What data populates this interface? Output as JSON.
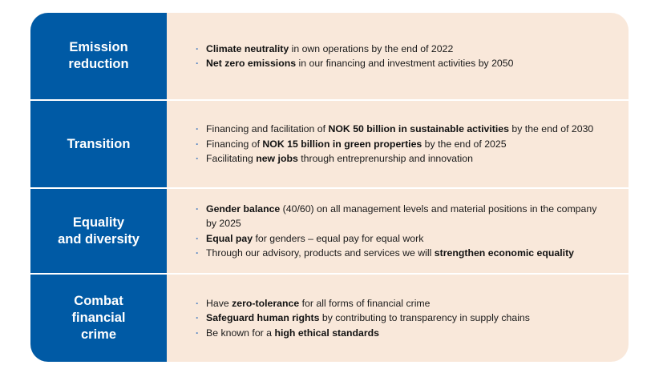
{
  "rows": [
    {
      "label": "Emission\nreduction",
      "items": [
        [
          {
            "b": true,
            "t": "Climate neutrality"
          },
          {
            "b": false,
            "t": " in own operations by the end of 2022"
          }
        ],
        [
          {
            "b": true,
            "t": "Net zero emissions"
          },
          {
            "b": false,
            "t": " in our financing and investment activities by 2050"
          }
        ]
      ]
    },
    {
      "label": "Transition",
      "items": [
        [
          {
            "b": false,
            "t": "Financing and facilitation of "
          },
          {
            "b": true,
            "t": "NOK 50 billion in sustainable activities"
          },
          {
            "b": false,
            "t": " by the end of 2030"
          }
        ],
        [
          {
            "b": false,
            "t": "Financing of "
          },
          {
            "b": true,
            "t": "NOK 15 billion in green properties"
          },
          {
            "b": false,
            "t": " by the end of 2025"
          }
        ],
        [
          {
            "b": false,
            "t": "Facilitating "
          },
          {
            "b": true,
            "t": "new jobs"
          },
          {
            "b": false,
            "t": " through entreprenurship and innovation"
          }
        ]
      ]
    },
    {
      "label": "Equality\nand diversity",
      "items": [
        [
          {
            "b": true,
            "t": "Gender balance"
          },
          {
            "b": false,
            "t": " (40/60) on all management levels and material positions in the company by 2025"
          }
        ],
        [
          {
            "b": true,
            "t": "Equal pay"
          },
          {
            "b": false,
            "t": " for genders  – equal pay for equal work"
          }
        ],
        [
          {
            "b": false,
            "t": "Through our advisory, products and services we will "
          },
          {
            "b": true,
            "t": "strengthen economic equality"
          }
        ]
      ]
    },
    {
      "label": "Combat\nfinancial\ncrime",
      "items": [
        [
          {
            "b": false,
            "t": "Have "
          },
          {
            "b": true,
            "t": "zero-tolerance"
          },
          {
            "b": false,
            "t": " for all forms of financial crime"
          }
        ],
        [
          {
            "b": true,
            "t": "Safeguard human rights"
          },
          {
            "b": false,
            "t": " by contributing to transparency in supply chains"
          }
        ],
        [
          {
            "b": false,
            "t": "Be known for a "
          },
          {
            "b": true,
            "t": "high ethical standards"
          }
        ]
      ]
    }
  ]
}
